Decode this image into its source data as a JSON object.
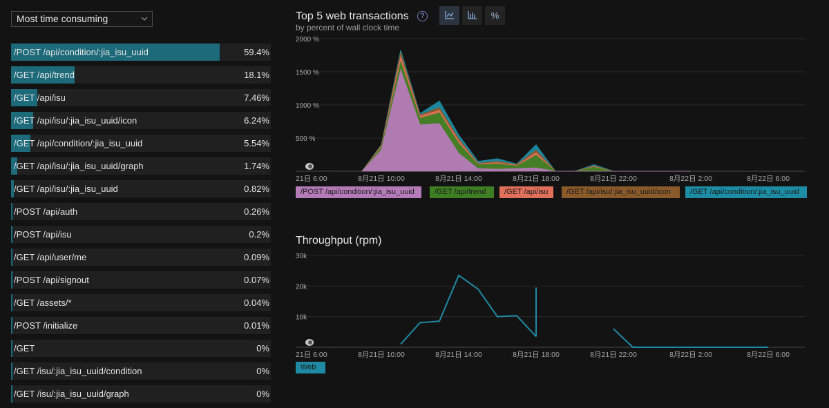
{
  "sort_select": {
    "value": "Most time consuming"
  },
  "transactions": [
    {
      "name": "/POST /api/condition/:jia_isu_uuid",
      "value": "59.4%",
      "pct": 59.4
    },
    {
      "name": "/GET /api/trend",
      "value": "18.1%",
      "pct": 18.1
    },
    {
      "name": "/GET /api/isu",
      "value": "7.46%",
      "pct": 7.46
    },
    {
      "name": "/GET /api/isu/:jia_isu_uuid/icon",
      "value": "6.24%",
      "pct": 6.24
    },
    {
      "name": "/GET /api/condition/:jia_isu_uuid",
      "value": "5.54%",
      "pct": 5.54
    },
    {
      "name": "/GET /api/isu/:jia_isu_uuid/graph",
      "value": "1.74%",
      "pct": 1.74
    },
    {
      "name": "/GET /api/isu/:jia_isu_uuid",
      "value": "0.82%",
      "pct": 0.82
    },
    {
      "name": "/POST /api/auth",
      "value": "0.26%",
      "pct": 0.26
    },
    {
      "name": "/POST /api/isu",
      "value": "0.2%",
      "pct": 0.2
    },
    {
      "name": "/GET /api/user/me",
      "value": "0.09%",
      "pct": 0.09
    },
    {
      "name": "/POST /api/signout",
      "value": "0.07%",
      "pct": 0.07
    },
    {
      "name": "/GET /assets/*",
      "value": "0.04%",
      "pct": 0.04
    },
    {
      "name": "/POST /initialize",
      "value": "0.01%",
      "pct": 0.01
    },
    {
      "name": "/GET",
      "value": "0%",
      "pct": 0
    },
    {
      "name": "/GET /isu/:jia_isu_uuid/condition",
      "value": "0%",
      "pct": 0
    },
    {
      "name": "/GET /isu/:jia_isu_uuid/graph",
      "value": "0%",
      "pct": 0
    }
  ],
  "top5": {
    "title": "Top 5 web transactions",
    "subtitle": "by percent of wall clock time",
    "help": "?",
    "view_buttons": [
      {
        "name": "area-chart-icon",
        "label": "area"
      },
      {
        "name": "bar-chart-icon",
        "label": "bar"
      },
      {
        "name": "percent-icon",
        "label": "%"
      }
    ]
  },
  "throughput": {
    "title": "Throughput (rpm)"
  },
  "colors": {
    "bar": "#1d6b7a",
    "post_condition": "#b57bb9",
    "get_trend": "#3f7f24",
    "get_isu": "#e0705a",
    "get_isu_icon": "#8a5a2a",
    "get_condition": "#1c8da5",
    "throughput_line": "#1e8aa3"
  },
  "chart_data": [
    {
      "type": "area",
      "title": "Top 5 web transactions",
      "subtitle": "by percent of wall clock time",
      "ylim": [
        0,
        2000
      ],
      "ytick_values": [
        500,
        1000,
        1500,
        2000
      ],
      "ytick_labels": [
        "500 %",
        "1000 %",
        "1500 %",
        "2000 %"
      ],
      "x_hours": [
        0,
        4,
        8,
        12,
        16,
        20,
        24
      ],
      "x_tick_labels": [
        "21日 6:00",
        "8月21日 10:00",
        "8月21日 14:00",
        "8月21日 18:00",
        "8月21日 22:00",
        "8月22日 2:00",
        "8月22日 6:00"
      ],
      "x": [
        3.0,
        4.0,
        5.0,
        6.0,
        7.0,
        8.0,
        9.0,
        10.0,
        11.0,
        12.0,
        13.0,
        14.0,
        15.0,
        16.0,
        17.0,
        18.0,
        19.0,
        20.0
      ],
      "series": [
        {
          "name": "/POST /api/condition/:jia_isu_uuid",
          "values": [
            0,
            320,
            1530,
            700,
            720,
            270,
            40,
            30,
            40,
            50,
            0,
            0,
            0,
            0,
            0,
            0,
            0,
            0
          ]
        },
        {
          "name": "/GET /api/trend",
          "values": [
            0,
            40,
            120,
            100,
            160,
            150,
            60,
            80,
            40,
            190,
            0,
            0,
            60,
            0,
            0,
            0,
            0,
            0
          ]
        },
        {
          "name": "/GET /api/isu",
          "values": [
            0,
            20,
            80,
            30,
            40,
            40,
            10,
            20,
            10,
            40,
            0,
            0,
            10,
            0,
            0,
            0,
            0,
            0
          ]
        },
        {
          "name": "/GET /api/isu/:jia_isu_uuid/icon",
          "values": [
            0,
            10,
            60,
            20,
            40,
            30,
            10,
            20,
            10,
            40,
            0,
            0,
            10,
            0,
            0,
            0,
            0,
            0
          ]
        },
        {
          "name": "/GET /api/condition/:jia_isu_uuid",
          "values": [
            0,
            10,
            40,
            20,
            100,
            60,
            30,
            40,
            10,
            80,
            0,
            0,
            20,
            0,
            0,
            0,
            0,
            0
          ]
        }
      ]
    },
    {
      "type": "line",
      "title": "Throughput (rpm)",
      "ylim": [
        0,
        30000
      ],
      "ytick_values": [
        10000,
        20000,
        30000
      ],
      "ytick_labels": [
        "10k",
        "20k",
        "30k"
      ],
      "x_hours": [
        0,
        4,
        8,
        12,
        16,
        20,
        24
      ],
      "x_tick_labels": [
        "21日 6:00",
        "8月21日 10:00",
        "8月21日 14:00",
        "8月21日 18:00",
        "8月21日 22:00",
        "8月22日 2:00",
        "8月22日 6:00"
      ],
      "series": [
        {
          "name": "Web",
          "segments": [
            {
              "x": [
                5.0,
                6.0,
                7.0,
                8.0,
                9.0,
                10.0,
                11.0,
                12.0
              ],
              "values": [
                1000,
                8000,
                8500,
                23500,
                19000,
                10000,
                10300,
                3500
              ]
            },
            {
              "x": [
                12.0,
                12.0
              ],
              "values": [
                3500,
                19500
              ]
            },
            {
              "x": [
                16.0,
                17.0,
                20.0,
                24.0
              ],
              "values": [
                6000,
                0,
                0,
                0
              ]
            }
          ]
        }
      ],
      "legend": [
        "Web"
      ]
    }
  ]
}
